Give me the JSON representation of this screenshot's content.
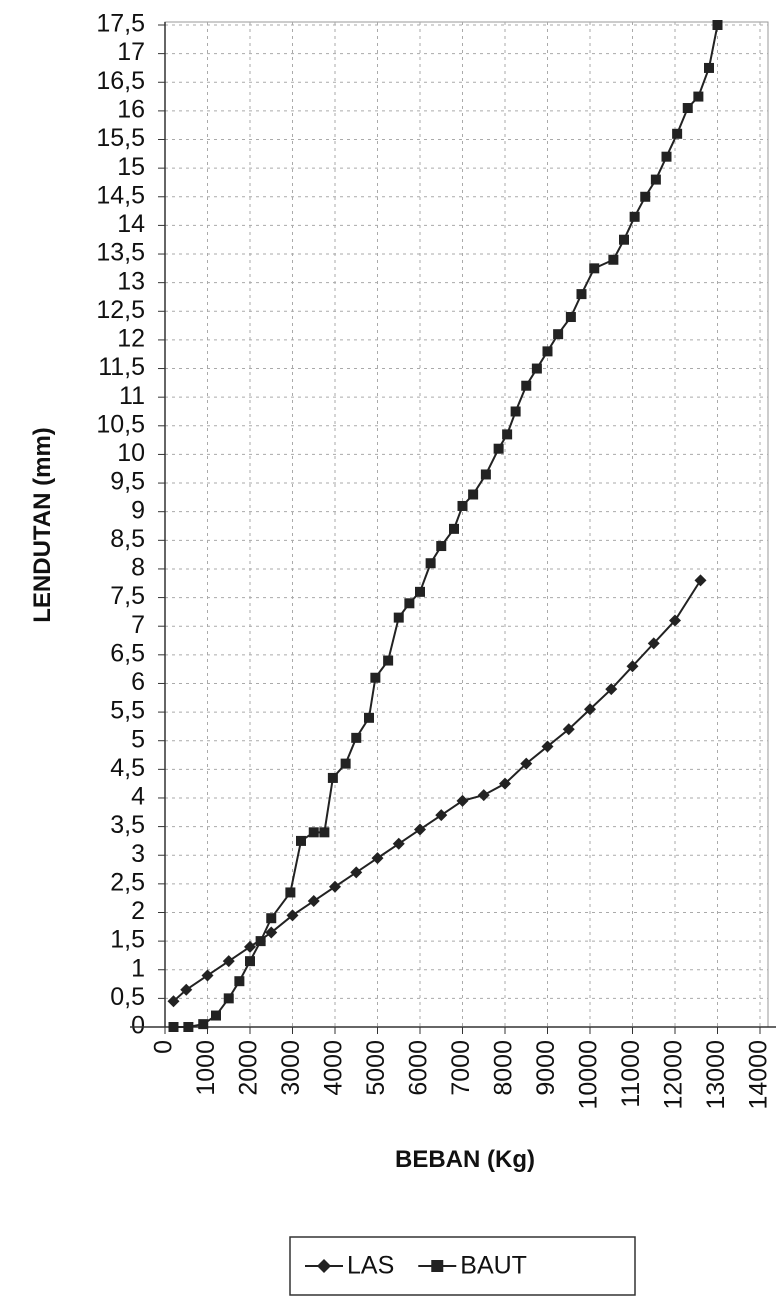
{
  "chart_data": {
    "type": "line",
    "y_label": "LENDUTAN (mm)",
    "x_label": "BEBAN (Kg)",
    "xlim": [
      0,
      14000
    ],
    "ylim": [
      0,
      17.5
    ],
    "xticks": [
      0,
      1000,
      2000,
      3000,
      4000,
      5000,
      6000,
      7000,
      8000,
      9000,
      10000,
      11000,
      12000,
      13000,
      14000
    ],
    "yticks": [
      0,
      {
        "value": 0.5,
        "label": "0,5"
      },
      1,
      {
        "value": 1.5,
        "label": "1,5"
      },
      2,
      {
        "value": 2.5,
        "label": "2,5"
      },
      3,
      {
        "value": 3.5,
        "label": "3,5"
      },
      4,
      {
        "value": 4.5,
        "label": "4,5"
      },
      5,
      {
        "value": 5.5,
        "label": "5,5"
      },
      6,
      {
        "value": 6.5,
        "label": "6,5"
      },
      7,
      {
        "value": 7.5,
        "label": "7,5"
      },
      8,
      {
        "value": 8.5,
        "label": "8,5"
      },
      9,
      {
        "value": 9.5,
        "label": "9,5"
      },
      10,
      {
        "value": 10.5,
        "label": "10,5"
      },
      11,
      {
        "value": 11.5,
        "label": "11,5"
      },
      12,
      {
        "value": 12.5,
        "label": "12,5"
      },
      13,
      {
        "value": 13.5,
        "label": "13,5"
      },
      14,
      {
        "value": 14.5,
        "label": "14,5"
      },
      15,
      {
        "value": 15.5,
        "label": "15,5"
      },
      16,
      {
        "value": 16.5,
        "label": "16,5"
      },
      17,
      {
        "value": 17.5,
        "label": "17,5"
      }
    ],
    "grid": true,
    "series": [
      {
        "name": "LAS",
        "color": "#222222",
        "marker": "diamond",
        "x": [
          200,
          500,
          1000,
          1500,
          2000,
          2500,
          3000,
          3500,
          4000,
          4500,
          5000,
          5500,
          6000,
          6500,
          7000,
          7500,
          8000,
          8500,
          9000,
          9500,
          10000,
          10500,
          11000,
          11500,
          12000,
          12600
        ],
        "values": [
          0.45,
          0.65,
          0.9,
          1.15,
          1.4,
          1.65,
          1.95,
          2.2,
          2.45,
          2.7,
          2.95,
          3.2,
          3.45,
          3.7,
          3.95,
          4.05,
          4.25,
          4.6,
          4.9,
          5.2,
          5.55,
          5.9,
          6.3,
          6.7,
          7.1,
          7.8
        ]
      },
      {
        "name": "BAUT",
        "color": "#222222",
        "marker": "square",
        "x": [
          200,
          550,
          900,
          1200,
          1500,
          1750,
          2000,
          2250,
          2500,
          2950,
          3200,
          3500,
          3750,
          3950,
          4250,
          4500,
          4800,
          4950,
          5250,
          5500,
          5750,
          6000,
          6250,
          6500,
          6800,
          7000,
          7250,
          7550,
          7850,
          8050,
          8250,
          8500,
          8750,
          9000,
          9250,
          9550,
          9800,
          10100,
          10550,
          10800,
          11050,
          11300,
          11550,
          11800,
          12050,
          12300,
          12550,
          12800,
          13000
        ],
        "values": [
          0,
          0,
          0.05,
          0.2,
          0.5,
          0.8,
          1.15,
          1.5,
          1.9,
          2.35,
          3.25,
          3.4,
          3.4,
          4.35,
          4.6,
          5.05,
          5.4,
          6.1,
          6.4,
          7.15,
          7.4,
          7.6,
          8.1,
          8.4,
          8.7,
          9.1,
          9.3,
          9.65,
          10.1,
          10.35,
          10.75,
          11.2,
          11.5,
          11.8,
          12.1,
          12.4,
          12.8,
          13.25,
          13.4,
          13.75,
          14.15,
          14.5,
          14.8,
          15.2,
          15.6,
          16.05,
          16.25,
          16.75,
          17.5
        ]
      }
    ]
  }
}
